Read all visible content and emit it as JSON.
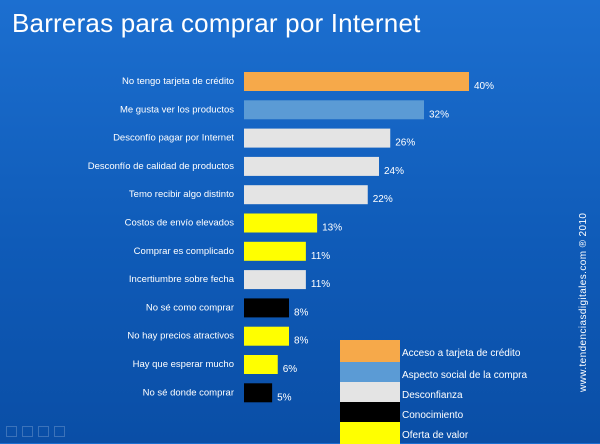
{
  "chart_data": {
    "type": "bar",
    "orientation": "horizontal",
    "title": "Barreras para comprar por Internet",
    "categories": [
      "No tengo tarjeta de crédito",
      "Me gusta ver los productos",
      "Desconfío pagar por Internet",
      "Desconfío de calidad de productos",
      "Temo recibir algo distinto",
      "Costos de envío elevados",
      "Comprar es complicado",
      "Incertiumbre sobre fecha",
      "No sé como comprar",
      "No hay precios atractivos",
      "Hay que esperar mucho",
      "No sé donde comprar"
    ],
    "values": [
      40,
      32,
      26,
      24,
      22,
      13,
      11,
      11,
      8,
      8,
      6,
      5
    ],
    "value_labels": [
      "40%",
      "32%",
      "26%",
      "24%",
      "22%",
      "13%",
      "11%",
      "11%",
      "8%",
      "8%",
      "6%",
      "5%"
    ],
    "group": [
      "Acceso a tarjeta de crédito",
      "Aspecto social de la compra",
      "Desconfianza",
      "Desconfianza",
      "Desconfianza",
      "Oferta de valor",
      "Oferta de valor",
      "Desconfianza",
      "Conocimiento",
      "Oferta de valor",
      "Oferta de valor",
      "Conocimiento"
    ],
    "xlim": [
      0,
      40
    ],
    "grid": false,
    "legend_position": "bottom-right",
    "legend": [
      {
        "name": "Acceso a tarjeta de crédito",
        "color": "#f6a94a"
      },
      {
        "name": "Aspecto social de la compra",
        "color": "#5b9bd5"
      },
      {
        "name": "Desconfianza",
        "color": "#e4e4e4"
      },
      {
        "name": "Conocimiento",
        "color": "#000000"
      },
      {
        "name": "Oferta de valor",
        "color": "#ffff00"
      }
    ]
  },
  "watermark": "www.tendenciasdigitales.com ® 2010",
  "colors": {
    "background_top": "#1c6fd0",
    "background_bottom": "#0a4ea6",
    "text": "#ffffff"
  },
  "toolbar_icons": [
    "arrow-icon",
    "pen-icon",
    "slide-icon",
    "navigate-icon"
  ]
}
